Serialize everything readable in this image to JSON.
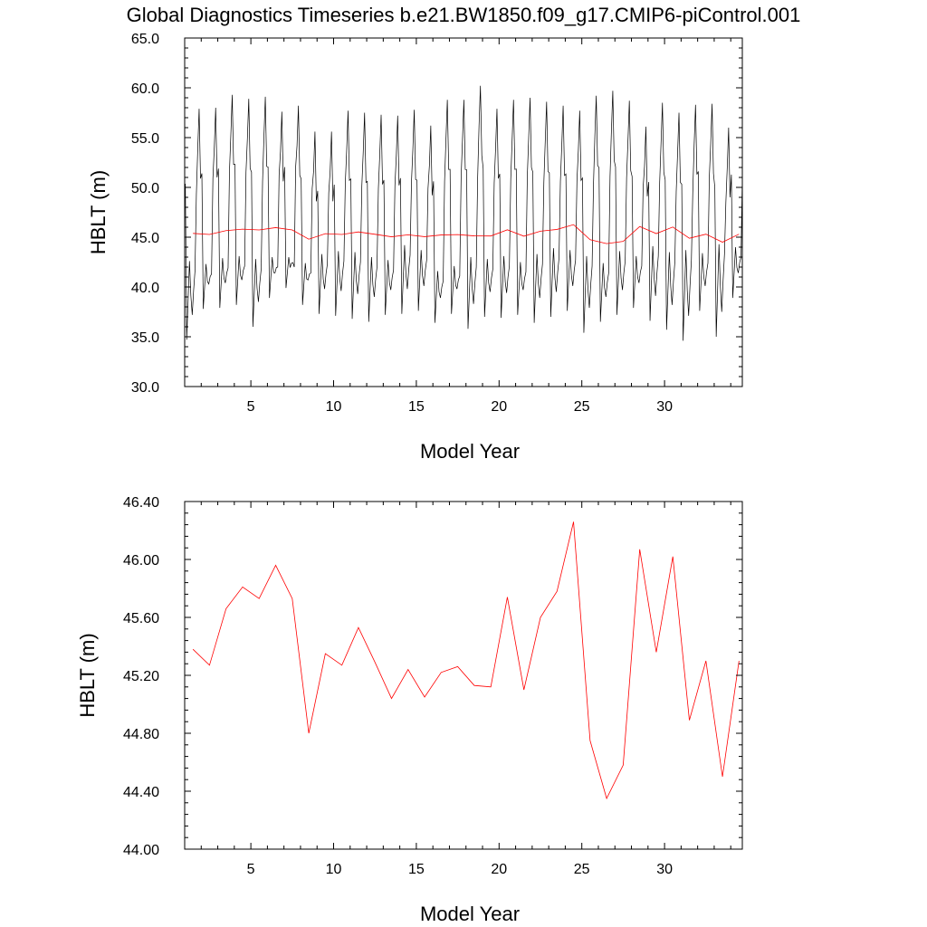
{
  "page_title": "Global Diagnostics Timeseries b.e21.BW1850.f09_g17.CMIP6-piControl.001",
  "colors": {
    "monthly": "#000000",
    "annual": "#ff0000",
    "axes": "#000000"
  },
  "chart_data": [
    {
      "type": "line",
      "title": "Global Diagnostics Timeseries b.e21.BW1850.f09_g17.CMIP6-piControl.001",
      "xlabel": "Model Year",
      "ylabel": "HBLT (m)",
      "xlim": [
        1,
        34.7
      ],
      "ylim": [
        30.0,
        65.0
      ],
      "xticks": [
        5,
        10,
        15,
        20,
        25,
        30
      ],
      "yticks": [
        "30.0",
        "35.0",
        "40.0",
        "45.0",
        "50.0",
        "55.0",
        "60.0",
        "65.0"
      ],
      "grid": false,
      "series": [
        {
          "color": "#000000",
          "annual_cycle_note_free": true,
          "x_start": 1.04,
          "x_step": 0.08333,
          "yearly_max": [
            57.9,
            58.0,
            59.3,
            58.9,
            59.1,
            57.6,
            58.2,
            55.6,
            55.6,
            57.7,
            57.5,
            57.3,
            57.2,
            57.8,
            56.2,
            58.8,
            58.8,
            60.2,
            57.9,
            58.8,
            59.0,
            58.6,
            58.2,
            57.7,
            59.2,
            59.7,
            58.7,
            56.1,
            58.5,
            57.5,
            58.3,
            58.4,
            56.0,
            58.6
          ],
          "yearly_min": [
            34.7,
            37.8,
            37.9,
            38.2,
            36.0,
            38.9,
            39.9,
            38.2,
            37.3,
            37.1,
            36.8,
            36.5,
            37.2,
            37.3,
            37.6,
            36.4,
            37.3,
            35.8,
            37.0,
            36.9,
            37.2,
            36.4,
            37.0,
            37.6,
            35.4,
            36.5,
            37.2,
            37.9,
            36.6,
            35.7,
            34.6,
            37.6,
            35.0,
            38.9
          ],
          "yearly_secondary_peak": [
            42.6,
            42.3,
            42.9,
            43.1,
            42.8,
            43.0,
            43.0,
            42.4,
            43.3,
            43.6,
            43.5,
            43.0,
            42.7,
            44.2,
            43.7,
            41.6,
            42.1,
            43.0,
            42.8,
            43.1,
            42.5,
            43.3,
            43.9,
            43.7,
            43.1,
            42.4,
            43.6,
            43.1,
            44.1,
            43.5,
            43.7,
            43.4,
            44.3,
            44.0
          ]
        },
        {
          "color": "#ff0000",
          "x": [
            1.5,
            2.5,
            3.5,
            4.5,
            5.5,
            6.5,
            7.5,
            8.5,
            9.5,
            10.5,
            11.5,
            12.5,
            13.5,
            14.5,
            15.5,
            16.5,
            17.5,
            18.5,
            19.5,
            20.5,
            21.5,
            22.5,
            23.5,
            24.5,
            25.5,
            26.5,
            27.5,
            28.5,
            29.5,
            30.5,
            31.5,
            32.5,
            33.5,
            34.5
          ],
          "values": [
            45.38,
            45.27,
            45.66,
            45.81,
            45.73,
            45.96,
            45.73,
            44.8,
            45.35,
            45.27,
            45.53,
            45.29,
            45.04,
            45.24,
            45.05,
            45.22,
            45.26,
            45.13,
            45.12,
            45.74,
            45.1,
            45.6,
            45.78,
            46.26,
            44.75,
            44.35,
            44.58,
            46.07,
            45.36,
            46.02,
            44.89,
            45.3,
            44.5,
            45.3
          ]
        }
      ]
    },
    {
      "type": "line",
      "xlabel": "Model Year",
      "ylabel": "HBLT (m)",
      "xlim": [
        1,
        34.7
      ],
      "ylim": [
        44.0,
        46.4
      ],
      "xticks": [
        5,
        10,
        15,
        20,
        25,
        30
      ],
      "yticks": [
        "44.00",
        "44.40",
        "44.80",
        "45.20",
        "45.60",
        "46.00",
        "46.40"
      ],
      "grid": false,
      "series": [
        {
          "color": "#ff0000",
          "x": [
            1.5,
            2.5,
            3.5,
            4.5,
            5.5,
            6.5,
            7.5,
            8.5,
            9.5,
            10.5,
            11.5,
            12.5,
            13.5,
            14.5,
            15.5,
            16.5,
            17.5,
            18.5,
            19.5,
            20.5,
            21.5,
            22.5,
            23.5,
            24.5,
            25.5,
            26.5,
            27.5,
            28.5,
            29.5,
            30.5,
            31.5,
            32.5,
            33.5,
            34.5
          ],
          "values": [
            45.38,
            45.27,
            45.66,
            45.81,
            45.73,
            45.96,
            45.73,
            44.8,
            45.35,
            45.27,
            45.53,
            45.29,
            45.04,
            45.24,
            45.05,
            45.22,
            45.26,
            45.13,
            45.12,
            45.74,
            45.1,
            45.6,
            45.78,
            46.26,
            44.75,
            44.35,
            44.58,
            46.07,
            45.36,
            46.02,
            44.89,
            45.3,
            44.5,
            45.3
          ]
        }
      ]
    }
  ]
}
